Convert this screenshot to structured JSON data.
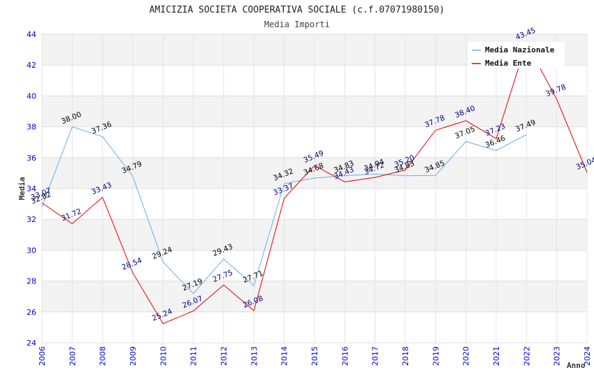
{
  "chart_data": {
    "type": "line",
    "title": "AMICIZIA SOCIETA COOPERATIVA SOCIALE (c.f.07071980150)",
    "subtitle": "Media Importi",
    "xlabel": "Anno",
    "ylabel": "Media",
    "ylim": [
      24,
      44
    ],
    "yticks": [
      "24",
      "26",
      "28",
      "30",
      "32",
      "34",
      "36",
      "38",
      "40",
      "42",
      "44"
    ],
    "x": [
      "2006",
      "2007",
      "2008",
      "2009",
      "2010",
      "2011",
      "2012",
      "2013",
      "2014",
      "2015",
      "2016",
      "2017",
      "2018",
      "2019",
      "2020",
      "2021",
      "2022",
      "2023",
      "2024"
    ],
    "legend_position": "top-right",
    "series": [
      {
        "name": "Media Nazionale",
        "color": "#6aaee6",
        "label_color": "#000000",
        "values": [
          32.82,
          38.0,
          37.36,
          34.79,
          29.24,
          27.19,
          29.43,
          27.71,
          34.32,
          34.68,
          34.83,
          34.94,
          34.83,
          34.85,
          37.05,
          36.46,
          37.49,
          null,
          null
        ],
        "labels": [
          "32.82",
          "38.00",
          "37.36",
          "34.79",
          "29.24",
          "27.19",
          "29.43",
          "27.71",
          "34.32",
          "34.68",
          "34.83",
          "34.94",
          "34.83",
          "34.85",
          "37.05",
          "36.46",
          "37.49",
          null,
          null
        ]
      },
      {
        "name": "Media Ente",
        "color": "#e00000",
        "label_color": "#000080",
        "values": [
          33.07,
          31.72,
          33.43,
          28.54,
          25.24,
          26.07,
          27.75,
          26.08,
          33.37,
          35.49,
          34.43,
          34.72,
          35.2,
          37.78,
          38.4,
          37.23,
          43.45,
          39.78,
          35.04
        ],
        "labels": [
          "33.07",
          "31.72",
          "33.43",
          "28.54",
          "25.24",
          "26.07",
          "27.75",
          "26.08",
          "33.37",
          "35.49",
          "34.43",
          "34.72",
          "35.20",
          "37.78",
          "38.40",
          "37.23",
          "43.45",
          "39.78",
          "35.04"
        ]
      }
    ]
  }
}
